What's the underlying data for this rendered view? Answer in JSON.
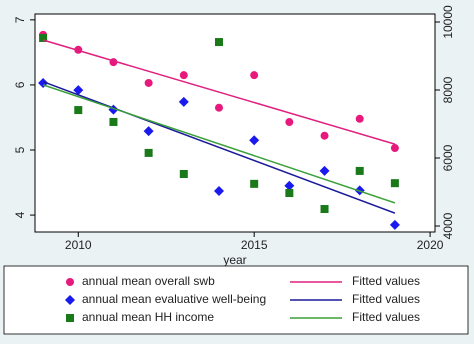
{
  "chart_data": {
    "type": "scatter",
    "x_label": "year",
    "x": [
      2009,
      2010,
      2011,
      2012,
      2013,
      2014,
      2015,
      2016,
      2017,
      2018,
      2019
    ],
    "xlim": [
      2008.77,
      2020.14
    ],
    "xticks": [
      2010,
      2015,
      2020
    ],
    "ylim": [
      3.74,
      7.09
    ],
    "yticks": [
      4,
      5,
      6,
      7
    ],
    "y2lim": [
      3824,
      10235
    ],
    "y2ticks": [
      4000,
      6000,
      8000,
      10000
    ],
    "grid": false,
    "legend": "bottom",
    "series": [
      {
        "name": "annual mean overall swb",
        "color": "#e8197c",
        "marker": "circle",
        "values": [
          6.77,
          6.54,
          6.35,
          6.03,
          6.15,
          5.65,
          6.15,
          5.43,
          5.22,
          5.48,
          5.03
        ]
      },
      {
        "name": "annual mean evaluative well-being",
        "color": "#1a1aee",
        "marker": "diamond",
        "values": [
          6.03,
          5.92,
          5.62,
          5.29,
          5.74,
          4.37,
          5.15,
          4.45,
          4.68,
          4.38,
          3.85
        ]
      },
      {
        "name": "annual mean HH income",
        "color": "#1a7a1a",
        "marker": "square",
        "axis": "y2",
        "values": [
          9530,
          7410,
          7060,
          6150,
          5530,
          9410,
          5240,
          4970,
          4500,
          5620,
          5260
        ]
      },
      {
        "name": "Fitted values",
        "color": "#e0207e",
        "type": "line",
        "x": [
          2009,
          2019
        ],
        "values": [
          6.69,
          5.09
        ]
      },
      {
        "name": "Fitted values",
        "color": "#1a1a9a",
        "type": "line",
        "x": [
          2009,
          2019
        ],
        "values": [
          6.05,
          4.03
        ]
      },
      {
        "name": "Fitted values",
        "color": "#3aa03a",
        "type": "line",
        "axis": "y2",
        "x": [
          2009,
          2019
        ],
        "values": [
          8150,
          4680
        ]
      }
    ]
  }
}
